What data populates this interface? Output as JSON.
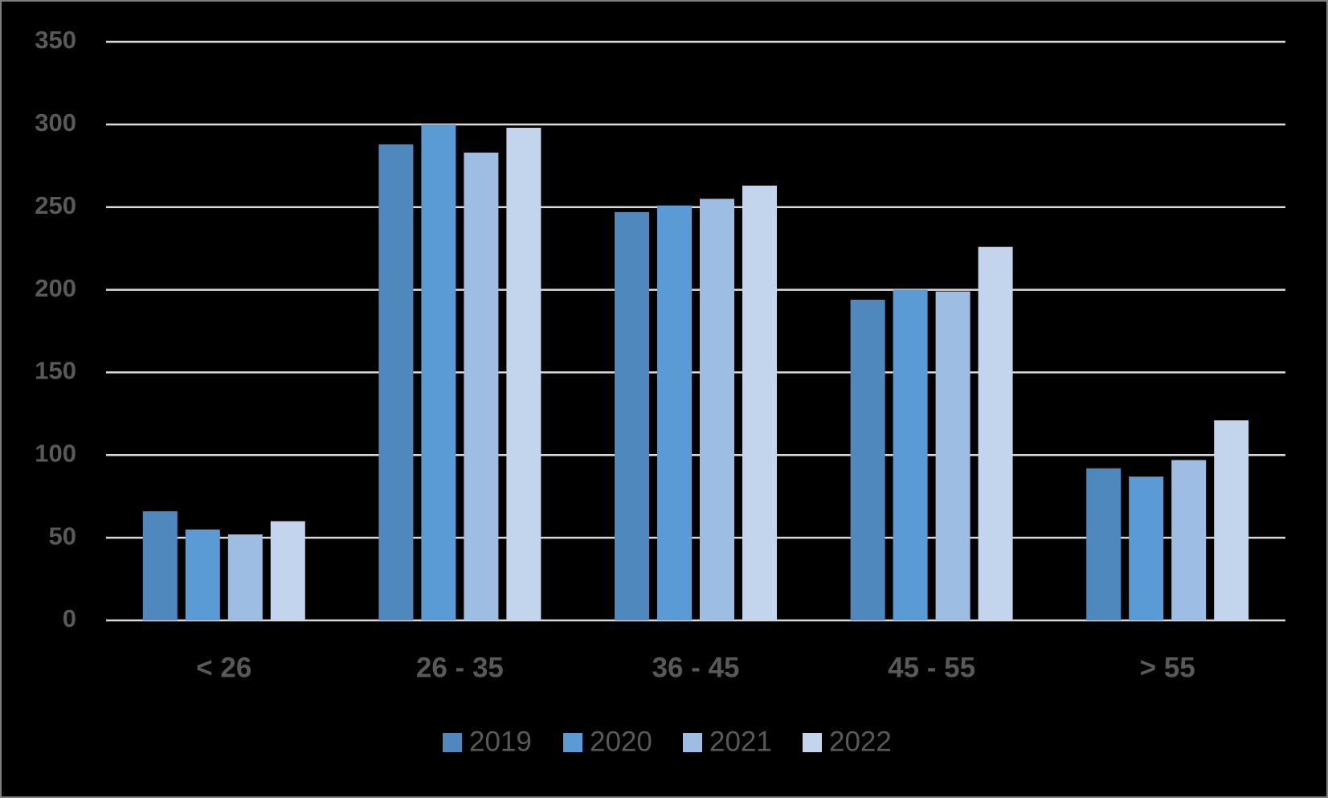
{
  "chart_data": {
    "type": "bar",
    "categories": [
      "< 26",
      "26 - 35",
      "36 - 45",
      "45 - 55",
      "> 55"
    ],
    "series": [
      {
        "name": "2019",
        "color": "#4f88bd",
        "values": [
          66,
          288,
          247,
          194,
          92
        ]
      },
      {
        "name": "2020",
        "color": "#5b9bd5",
        "values": [
          55,
          300,
          251,
          200,
          87
        ]
      },
      {
        "name": "2021",
        "color": "#9dbde3",
        "values": [
          52,
          283,
          255,
          199,
          97
        ]
      },
      {
        "name": "2022",
        "color": "#c3d5ec",
        "values": [
          60,
          298,
          263,
          226,
          121
        ]
      }
    ],
    "ylim": [
      0,
      350
    ],
    "yticks": [
      0,
      50,
      100,
      150,
      200,
      250,
      300,
      350
    ],
    "grid": true,
    "legend": "bottom"
  }
}
